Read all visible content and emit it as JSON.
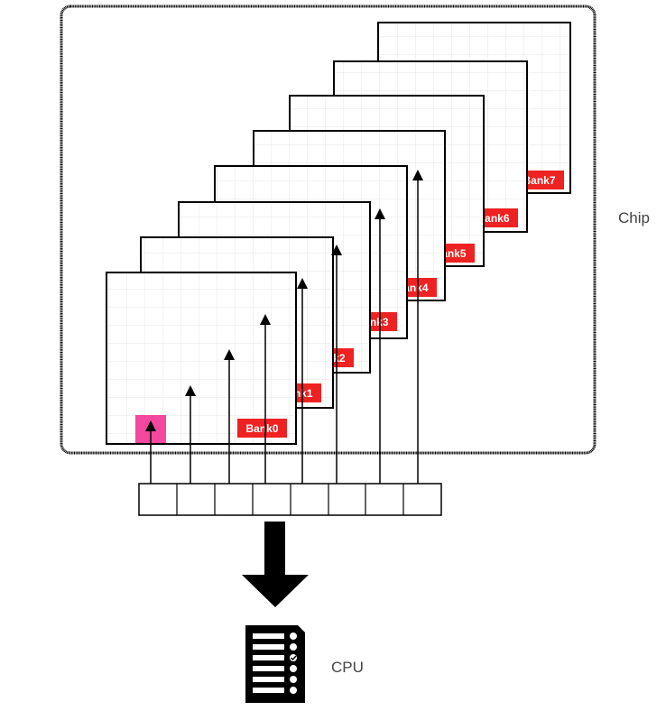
{
  "chip": {
    "label": "Chip"
  },
  "cpu": {
    "label": "CPU"
  },
  "banks": [
    {
      "label": "Bank0"
    },
    {
      "label": "Bank1"
    },
    {
      "label": "Bank2"
    },
    {
      "label": "Bank3"
    },
    {
      "label": "Bank4"
    },
    {
      "label": "Bank5"
    },
    {
      "label": "Bank6"
    },
    {
      "label": "Bank7"
    }
  ],
  "colors": {
    "label_bg": "#ee2222",
    "cell_highlight": "#f4479e",
    "grid_line": "#e4e4e4",
    "stroke": "#000000"
  },
  "icons": {
    "transfer_arrow": "down-arrow-icon",
    "cpu": "cpu-icon"
  }
}
